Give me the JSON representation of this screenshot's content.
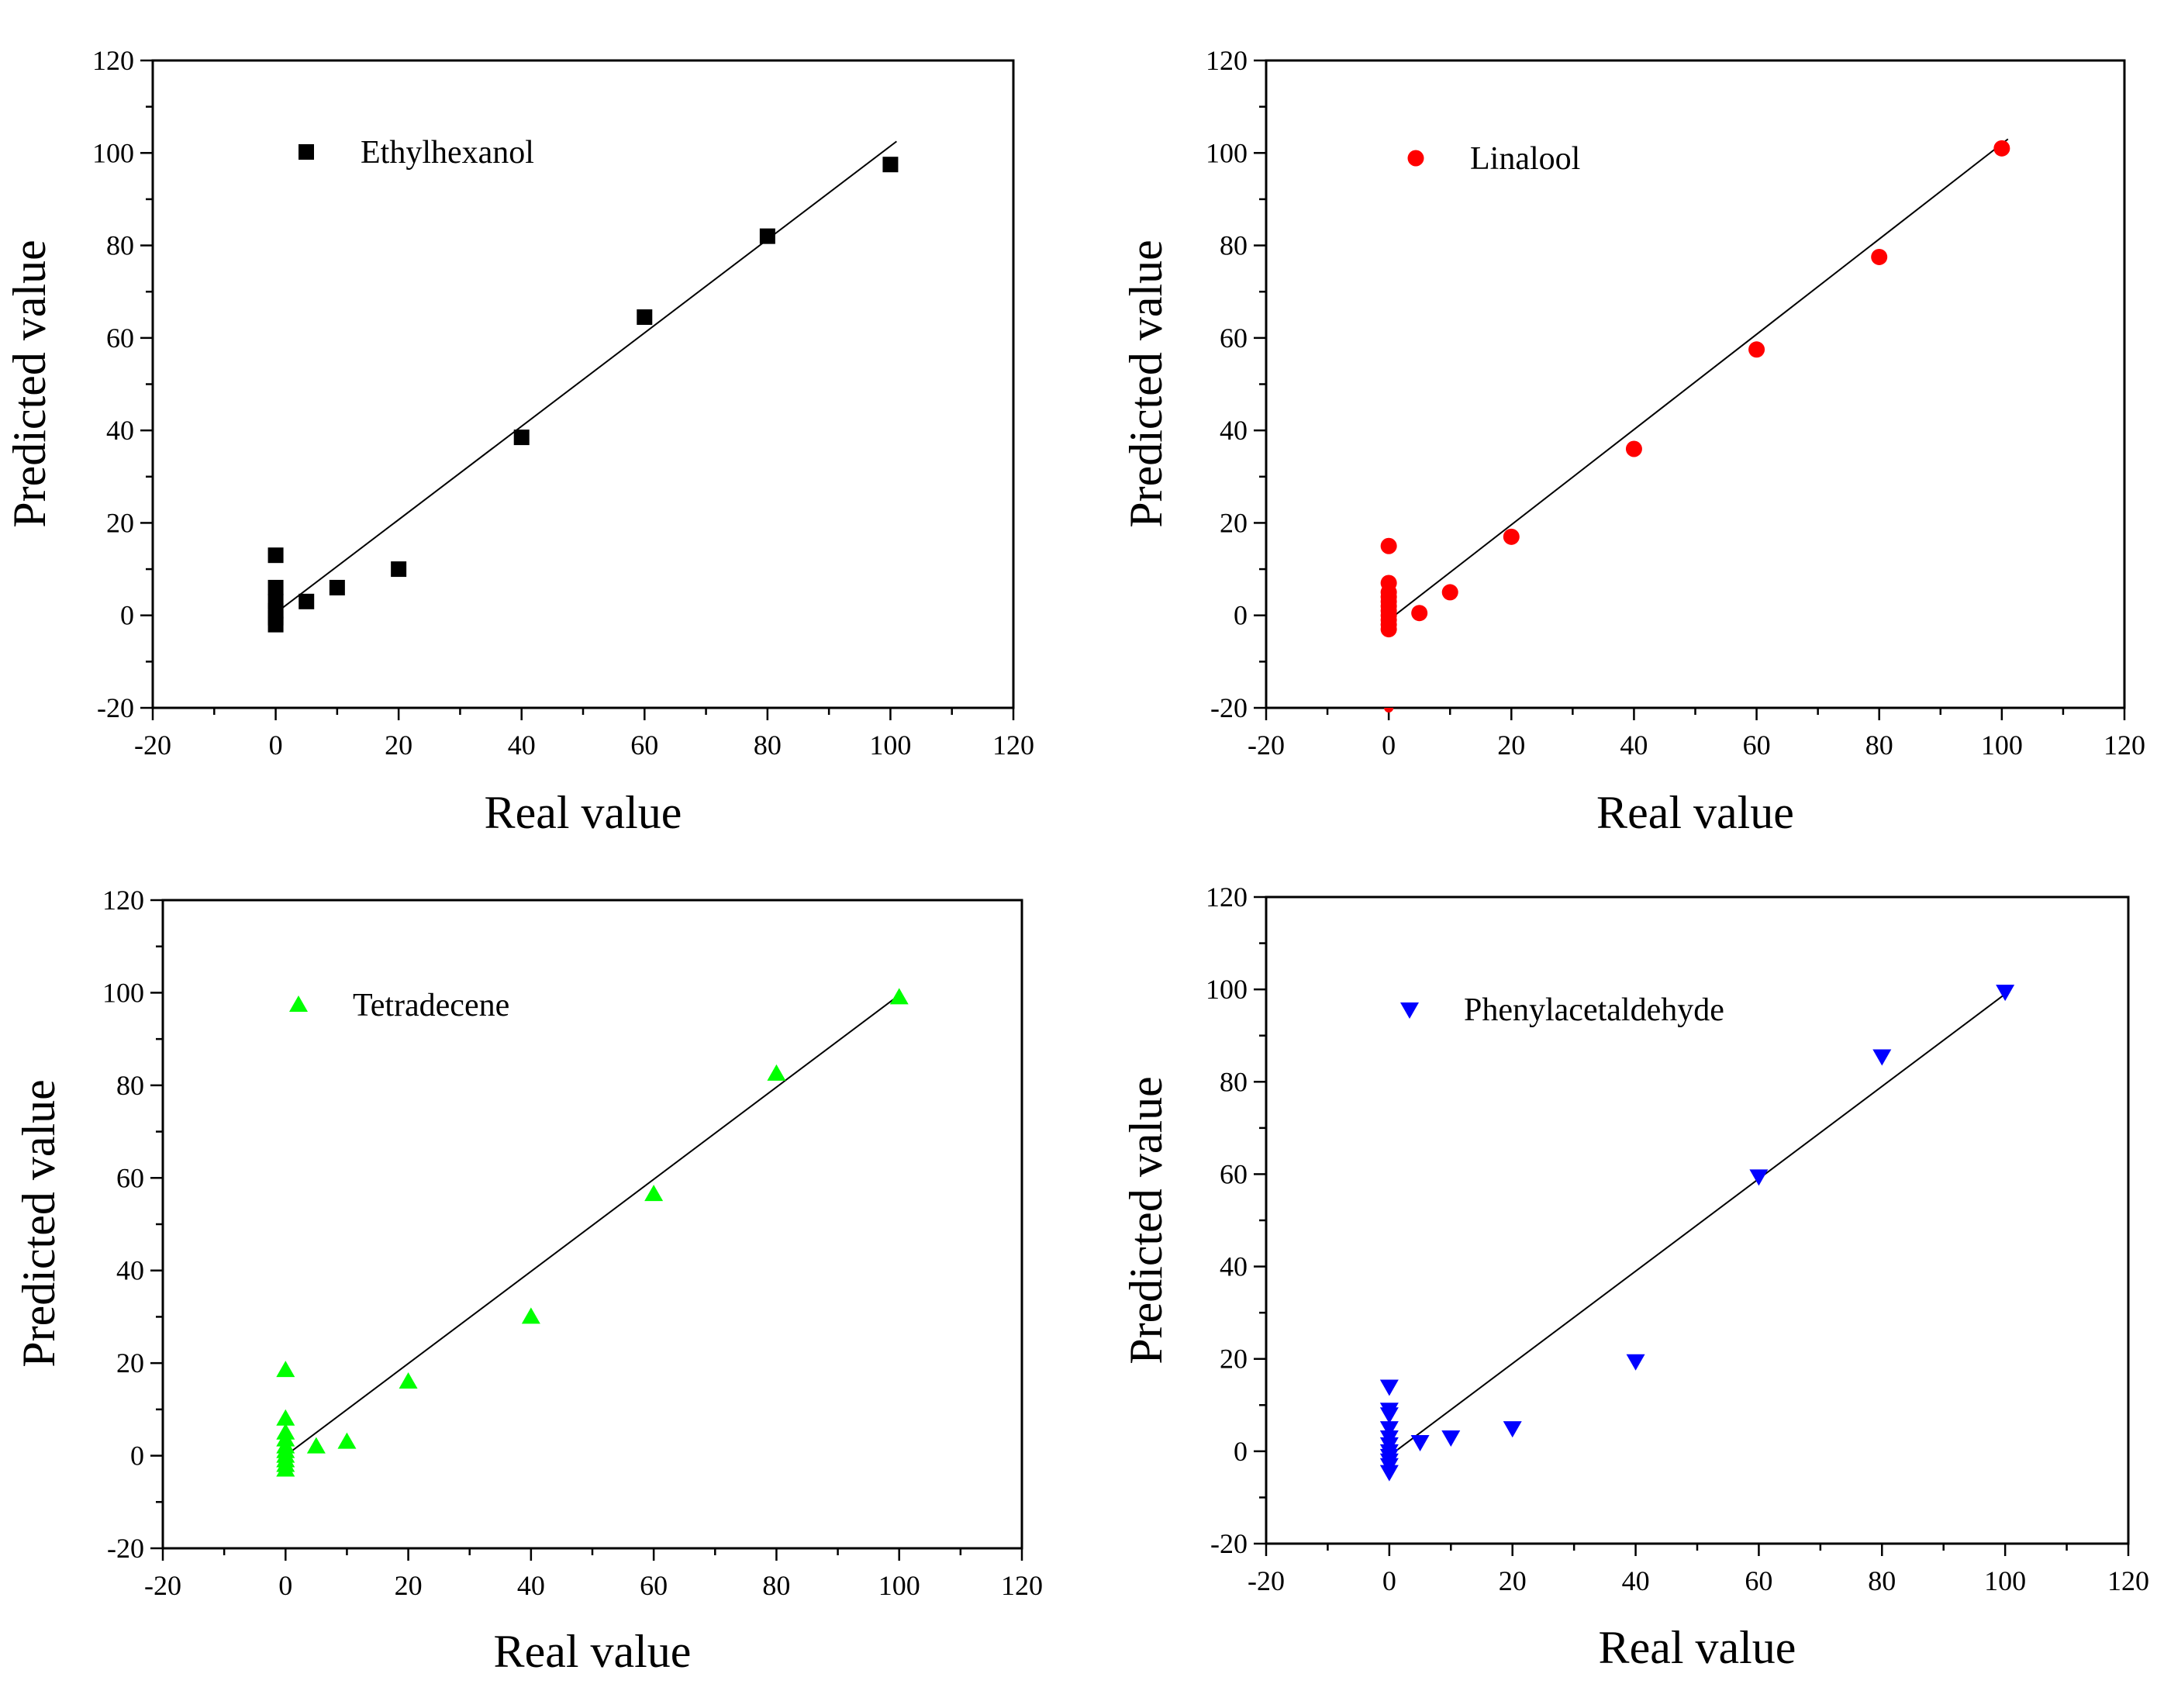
{
  "chart_data": [
    {
      "type": "scatter",
      "xlabel": "Real value",
      "ylabel": "Predicted value",
      "xlim": [
        -20,
        120
      ],
      "ylim": [
        -20,
        120
      ],
      "xticks": [
        "-20",
        "0",
        "20",
        "40",
        "60",
        "80",
        "100",
        "120"
      ],
      "yticks": [
        "-20",
        "0",
        "20",
        "40",
        "60",
        "80",
        "100",
        "120"
      ],
      "legend_position": "top-left",
      "series": [
        {
          "name": "Ethylhexanol",
          "color": "#000000",
          "marker": "square",
          "x": [
            0,
            0,
            0,
            0,
            0,
            0,
            5,
            10,
            20,
            40,
            60,
            80,
            100
          ],
          "y": [
            13,
            6,
            3,
            1,
            -0.5,
            -2,
            3,
            6,
            10,
            38.5,
            64.5,
            82,
            97.5
          ]
        }
      ],
      "fit_line": {
        "x": [
          0,
          101
        ],
        "y": [
          0.5,
          102.5
        ]
      }
    },
    {
      "type": "scatter",
      "xlabel": "Real value",
      "ylabel": "Predicted value",
      "xlim": [
        -20,
        120
      ],
      "ylim": [
        -20,
        120
      ],
      "xticks": [
        "-20",
        "0",
        "20",
        "40",
        "60",
        "80",
        "100",
        "120"
      ],
      "yticks": [
        "-20",
        "0",
        "20",
        "40",
        "60",
        "80",
        "100",
        "120"
      ],
      "legend_position": "top-left",
      "series": [
        {
          "name": "Linalool",
          "color": "#ff0000",
          "marker": "circle",
          "x": [
            0,
            0,
            0,
            0,
            0,
            0,
            0,
            0,
            0,
            0,
            0,
            5,
            10,
            20,
            40,
            60,
            80,
            100
          ],
          "y": [
            15,
            7,
            5,
            4,
            3,
            2,
            1,
            0,
            -1,
            -2,
            -3,
            0.5,
            5,
            17,
            36,
            57.5,
            77.5,
            101
          ],
          "clipped_x": [
            0
          ],
          "clipped_y": [
            -20
          ]
        }
      ],
      "fit_line": {
        "x": [
          0,
          101
        ],
        "y": [
          -1,
          103
        ]
      }
    },
    {
      "type": "scatter",
      "xlabel": "Real value",
      "ylabel": "Predicted value",
      "xlim": [
        -20,
        120
      ],
      "ylim": [
        -20,
        120
      ],
      "xticks": [
        "-20",
        "0",
        "20",
        "40",
        "60",
        "80",
        "100",
        "120"
      ],
      "yticks": [
        "-20",
        "0",
        "20",
        "40",
        "60",
        "80",
        "100",
        "120"
      ],
      "legend_position": "top-left",
      "series": [
        {
          "name": "Tetradecene",
          "color": "#00ff00",
          "marker": "triangle-up",
          "x": [
            0,
            0,
            0,
            0,
            0,
            0,
            0,
            0,
            0,
            0,
            5,
            10,
            20,
            40,
            60,
            80,
            100
          ],
          "y": [
            18.5,
            8,
            5,
            3.5,
            2,
            1,
            0,
            -1,
            -2,
            -3,
            2,
            3,
            16,
            30,
            56.5,
            82.5,
            99
          ],
          "clipped_x": [],
          "clipped_y": []
        }
      ],
      "fit_line": {
        "x": [
          0,
          100
        ],
        "y": [
          0,
          99.5
        ]
      }
    },
    {
      "type": "scatter",
      "xlabel": "Real value",
      "ylabel": "Predicted value",
      "xlim": [
        -20,
        120
      ],
      "ylim": [
        -20,
        120
      ],
      "xticks": [
        "-20",
        "0",
        "20",
        "40",
        "60",
        "80",
        "100",
        "120"
      ],
      "yticks": [
        "-20",
        "0",
        "20",
        "40",
        "60",
        "80",
        "100",
        "120"
      ],
      "legend_position": "top-left",
      "series": [
        {
          "name": "Phenylacetaldehyde",
          "color": "#0000ff",
          "marker": "triangle-down",
          "x": [
            0,
            0,
            0,
            0,
            0,
            0,
            0,
            0,
            0,
            0,
            0,
            5,
            10,
            20,
            40,
            60,
            80,
            100
          ],
          "y": [
            14,
            9,
            8,
            5,
            3,
            1.5,
            0,
            -1,
            -2,
            -3,
            -4.5,
            2,
            3,
            5,
            19.5,
            59.5,
            85.5,
            99.5
          ],
          "clipped_x": [],
          "clipped_y": []
        }
      ],
      "fit_line": {
        "x": [
          0,
          100
        ],
        "y": [
          -1,
          99
        ]
      }
    }
  ]
}
